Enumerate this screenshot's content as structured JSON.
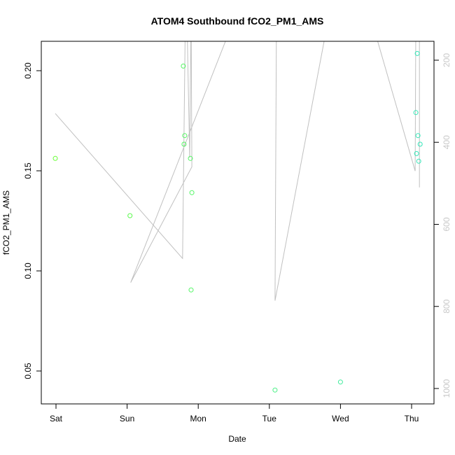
{
  "chart_data": {
    "type": "scatter",
    "title": "ATOM4 Southbound fCO2_PM1_AMS",
    "xlabel": "Date",
    "ylabel": "fCO2_PM1_AMS",
    "x_range": [
      -0.02,
      5.3
    ],
    "x_ticks": [
      {
        "value": 0,
        "label": "Sat"
      },
      {
        "value": 1,
        "label": "Sun"
      },
      {
        "value": 2,
        "label": "Mon"
      },
      {
        "value": 3,
        "label": "Tue"
      },
      {
        "value": 4,
        "label": "Wed"
      },
      {
        "value": 5,
        "label": "Thu"
      }
    ],
    "ylim": [
      0.034,
      0.215
    ],
    "y_ticks": [
      0.05,
      0.1,
      0.15,
      0.2
    ],
    "y_tick_labels": [
      "0.05",
      "0.10",
      "0.15",
      "0.20"
    ],
    "y2lim": [
      1040,
      150
    ],
    "y2_ticks": [
      200,
      400,
      600,
      800,
      1000
    ],
    "y2_tick_labels": [
      "200",
      "400",
      "600",
      "800",
      "1000"
    ],
    "grid": false,
    "series": [
      {
        "kind": "points",
        "axis": "left",
        "color_start": "#66ff33",
        "color_end": "#33e6bb",
        "points": [
          {
            "x": -0.01,
            "y": 0.1562
          },
          {
            "x": 1.04,
            "y": 0.1276
          },
          {
            "x": 1.79,
            "y": 0.2023
          },
          {
            "x": 1.81,
            "y": 0.1676
          },
          {
            "x": 1.8,
            "y": 0.1633
          },
          {
            "x": 1.89,
            "y": 0.1562
          },
          {
            "x": 1.91,
            "y": 0.1391
          },
          {
            "x": 1.9,
            "y": 0.0905
          },
          {
            "x": 3.08,
            "y": 0.0405
          },
          {
            "x": 4.0,
            "y": 0.0445
          },
          {
            "x": 5.06,
            "y": 0.1791
          },
          {
            "x": 5.08,
            "y": 0.2086
          },
          {
            "x": 5.09,
            "y": 0.1676
          },
          {
            "x": 5.12,
            "y": 0.1633
          },
          {
            "x": 5.07,
            "y": 0.1586
          },
          {
            "x": 5.1,
            "y": 0.1548
          }
        ]
      },
      {
        "kind": "line",
        "axis": "right",
        "color": "#c0c0c0",
        "points": [
          {
            "x": -0.01,
            "y": 330
          },
          {
            "x": 1.78,
            "y": 683
          },
          {
            "x": 1.82,
            "y": 80
          },
          {
            "x": 1.84,
            "y": 80
          },
          {
            "x": 1.88,
            "y": 438
          },
          {
            "x": 1.9,
            "y": 80
          },
          {
            "x": 1.9,
            "y": 80
          },
          {
            "x": 1.91,
            "y": 460
          },
          {
            "x": 1.05,
            "y": 742
          },
          {
            "x": 2.55,
            "y": 80
          },
          {
            "x": 3.1,
            "y": 80
          },
          {
            "x": 3.08,
            "y": 786
          },
          {
            "x": 3.85,
            "y": 80
          },
          {
            "x": 4.4,
            "y": 80
          },
          {
            "x": 5.05,
            "y": 470
          },
          {
            "x": 5.06,
            "y": 80
          },
          {
            "x": 5.09,
            "y": 80
          },
          {
            "x": 5.11,
            "y": 80
          },
          {
            "x": 5.11,
            "y": 510
          }
        ]
      }
    ]
  }
}
